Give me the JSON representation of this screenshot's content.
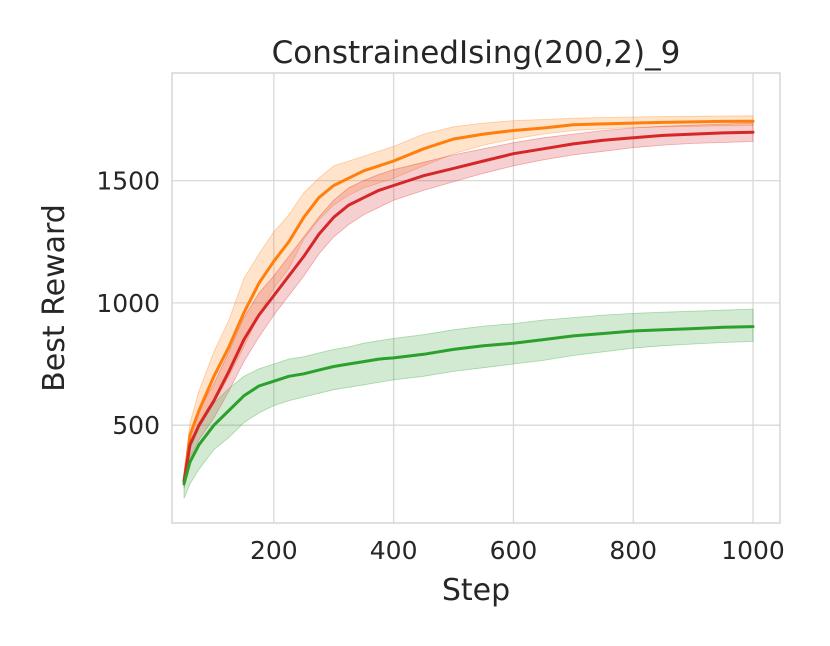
{
  "chart_data": {
    "type": "line",
    "title": "ConstrainedIsing(200,2)_9",
    "xlabel": "Step",
    "ylabel": "Best Reward",
    "xlim": [
      30,
      1045
    ],
    "ylim": [
      100,
      1940
    ],
    "xticks": [
      200,
      400,
      600,
      800,
      1000
    ],
    "yticks": [
      500,
      1000,
      1500
    ],
    "grid": true,
    "series": [
      {
        "color": "#ff7f0e",
        "x": [
          50,
          60,
          75,
          100,
          125,
          150,
          175,
          200,
          225,
          250,
          275,
          300,
          325,
          350,
          375,
          400,
          450,
          500,
          550,
          600,
          650,
          700,
          750,
          800,
          850,
          900,
          950,
          1000
        ],
        "y": [
          270,
          460,
          560,
          700,
          820,
          960,
          1080,
          1170,
          1250,
          1350,
          1430,
          1480,
          1510,
          1540,
          1560,
          1580,
          1630,
          1670,
          1690,
          1705,
          1715,
          1728,
          1732,
          1735,
          1738,
          1740,
          1742,
          1743
        ],
        "lower": [
          250,
          410,
          490,
          590,
          700,
          820,
          950,
          1060,
          1140,
          1260,
          1340,
          1400,
          1440,
          1470,
          1490,
          1510,
          1560,
          1610,
          1645,
          1670,
          1690,
          1705,
          1712,
          1717,
          1720,
          1722,
          1724,
          1725
        ],
        "upper": [
          290,
          510,
          640,
          800,
          930,
          1100,
          1200,
          1290,
          1360,
          1450,
          1510,
          1560,
          1580,
          1600,
          1620,
          1640,
          1690,
          1720,
          1735,
          1745,
          1750,
          1755,
          1758,
          1760,
          1762,
          1763,
          1764,
          1765
        ]
      },
      {
        "color": "#d62728",
        "x": [
          50,
          60,
          75,
          100,
          125,
          150,
          175,
          200,
          225,
          250,
          275,
          300,
          325,
          350,
          375,
          400,
          450,
          500,
          550,
          600,
          650,
          700,
          750,
          800,
          850,
          900,
          950,
          1000
        ],
        "y": [
          270,
          420,
          500,
          600,
          720,
          850,
          950,
          1030,
          1110,
          1190,
          1280,
          1350,
          1400,
          1430,
          1460,
          1480,
          1520,
          1550,
          1580,
          1610,
          1630,
          1650,
          1665,
          1675,
          1685,
          1690,
          1695,
          1698
        ],
        "lower": [
          240,
          370,
          440,
          530,
          640,
          760,
          860,
          950,
          1030,
          1110,
          1200,
          1270,
          1320,
          1360,
          1390,
          1420,
          1460,
          1495,
          1530,
          1560,
          1585,
          1605,
          1620,
          1635,
          1645,
          1652,
          1656,
          1660
        ],
        "upper": [
          300,
          470,
          560,
          670,
          800,
          940,
          1040,
          1110,
          1190,
          1270,
          1350,
          1420,
          1470,
          1500,
          1525,
          1545,
          1575,
          1605,
          1630,
          1655,
          1675,
          1690,
          1705,
          1715,
          1722,
          1727,
          1731,
          1735
        ]
      },
      {
        "color": "#2ca02c",
        "x": [
          50,
          60,
          75,
          100,
          125,
          150,
          175,
          200,
          225,
          250,
          275,
          300,
          325,
          350,
          375,
          400,
          450,
          500,
          550,
          600,
          650,
          700,
          750,
          800,
          850,
          900,
          950,
          1000
        ],
        "y": [
          260,
          350,
          420,
          500,
          560,
          620,
          660,
          680,
          700,
          710,
          725,
          740,
          750,
          760,
          770,
          775,
          790,
          810,
          825,
          835,
          850,
          865,
          875,
          885,
          890,
          895,
          900,
          903
        ],
        "lower": [
          200,
          260,
          320,
          400,
          450,
          510,
          550,
          580,
          600,
          615,
          630,
          645,
          655,
          665,
          675,
          685,
          700,
          720,
          735,
          750,
          765,
          785,
          800,
          815,
          825,
          832,
          838,
          842
        ],
        "upper": [
          300,
          400,
          490,
          590,
          650,
          700,
          730,
          750,
          770,
          780,
          795,
          810,
          820,
          835,
          845,
          855,
          870,
          890,
          905,
          915,
          930,
          940,
          950,
          957,
          962,
          966,
          970,
          975
        ]
      }
    ]
  }
}
